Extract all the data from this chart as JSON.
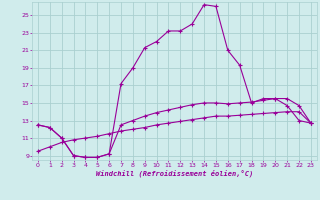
{
  "x": [
    0,
    1,
    2,
    3,
    4,
    5,
    6,
    7,
    8,
    9,
    10,
    11,
    12,
    13,
    14,
    15,
    16,
    17,
    18,
    19,
    20,
    21,
    22,
    23
  ],
  "line_peak": [
    12.5,
    12.2,
    11.0,
    9.0,
    8.8,
    8.8,
    9.2,
    17.2,
    19.0,
    21.3,
    22.0,
    23.2,
    23.2,
    24.0,
    26.2,
    26.0,
    21.0,
    19.3,
    15.0,
    15.5,
    15.5,
    14.7,
    13.0,
    12.7
  ],
  "line_mid": [
    12.5,
    12.2,
    11.0,
    9.0,
    8.8,
    8.8,
    9.2,
    12.5,
    13.0,
    13.5,
    13.9,
    14.2,
    14.5,
    14.8,
    15.0,
    15.0,
    14.9,
    15.0,
    15.1,
    15.3,
    15.5,
    15.5,
    14.7,
    12.7
  ],
  "line_low": [
    9.5,
    10.0,
    10.5,
    10.8,
    11.0,
    11.2,
    11.5,
    11.8,
    12.0,
    12.2,
    12.5,
    12.7,
    12.9,
    13.1,
    13.3,
    13.5,
    13.5,
    13.6,
    13.7,
    13.8,
    13.9,
    14.0,
    14.0,
    12.7
  ],
  "color": "#990099",
  "bg_color": "#d0ecec",
  "grid_color": "#aad0d0",
  "xlabel": "Windchill (Refroidissement éolien,°C)",
  "xlim": [
    -0.5,
    23.5
  ],
  "ylim": [
    8.5,
    26.5
  ],
  "yticks": [
    9,
    11,
    13,
    15,
    17,
    19,
    21,
    23,
    25
  ],
  "xticks": [
    0,
    1,
    2,
    3,
    4,
    5,
    6,
    7,
    8,
    9,
    10,
    11,
    12,
    13,
    14,
    15,
    16,
    17,
    18,
    19,
    20,
    21,
    22,
    23
  ]
}
